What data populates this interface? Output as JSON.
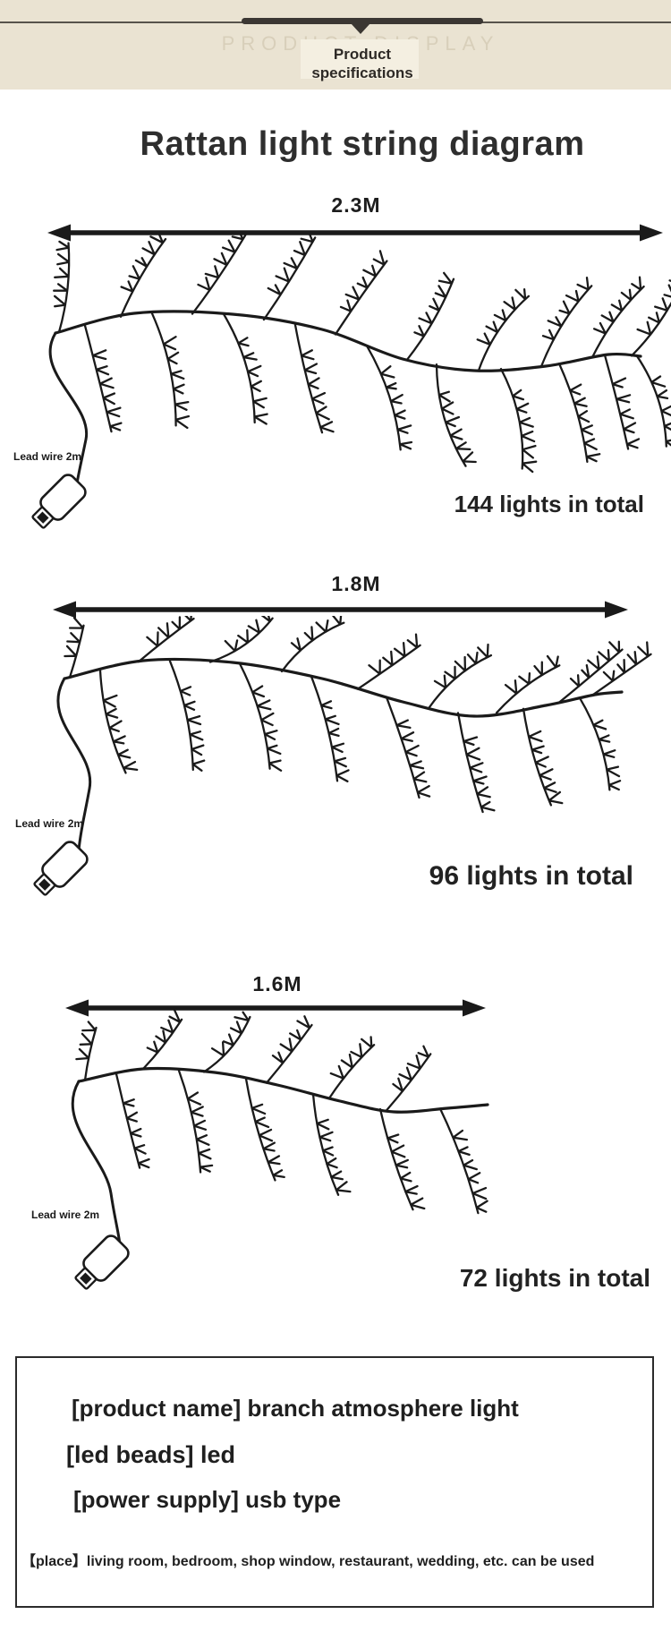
{
  "header": {
    "ghost_title": "PRODUCT DISPLAY",
    "badge_label": "Product specifications"
  },
  "page_title": "Rattan light string diagram",
  "sections": [
    {
      "length_label": "2.3M",
      "lead_wire_label": "Lead wire 2m",
      "total_label": "144 lights in total"
    },
    {
      "length_label": "1.8M",
      "lead_wire_label": "Lead wire 2m",
      "total_label": "96 lights in total"
    },
    {
      "length_label": "1.6M",
      "lead_wire_label": "Lead wire 2m",
      "total_label": "72 lights in total"
    }
  ],
  "spec_box": {
    "lines": [
      "[product name] branch atmosphere light",
      "[led beads] led",
      "[power supply] usb type",
      "【place】living room, bedroom, shop window, restaurant, wedding, etc. can be used"
    ]
  },
  "colors": {
    "header_background": "#eae3d2",
    "header_bar": "#3b3733",
    "ghost_text": "#d8cfba",
    "ink": "#1a1a1a"
  }
}
